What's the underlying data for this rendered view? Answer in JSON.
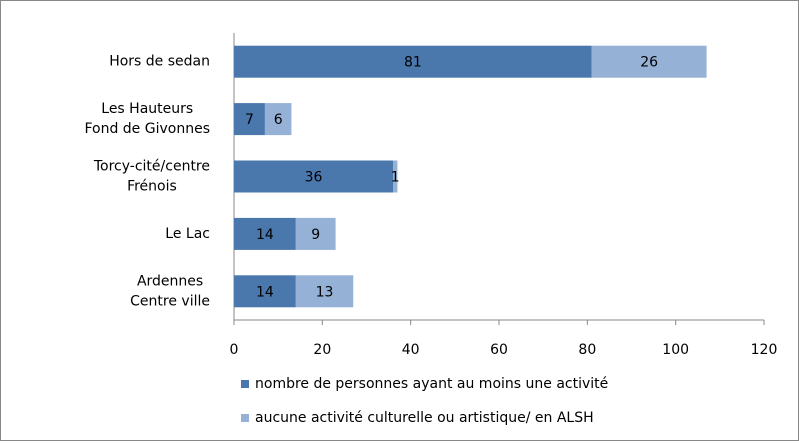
{
  "chart_data": {
    "type": "stacked_bar_horizontal",
    "categories": [
      [
        "Hors de sedan"
      ],
      [
        "Les Hauteurs",
        "Fond de Givonnes"
      ],
      [
        "Torcy-cité/centre",
        "Frénois"
      ],
      [
        "Le Lac"
      ],
      [
        "Ardennes",
        "Centre ville"
      ]
    ],
    "series": [
      {
        "name": "nombre de personnes ayant au moins une activité",
        "color": "#4a78ad",
        "values": [
          81,
          7,
          36,
          14,
          14
        ]
      },
      {
        "name": "aucune activité culturelle ou artistique/ en ALSH",
        "color": "#95b1d6",
        "values": [
          26,
          6,
          1,
          9,
          13
        ]
      }
    ],
    "xlim": [
      0,
      120
    ],
    "xticks": [
      0,
      20,
      40,
      60,
      80,
      100,
      120
    ]
  }
}
